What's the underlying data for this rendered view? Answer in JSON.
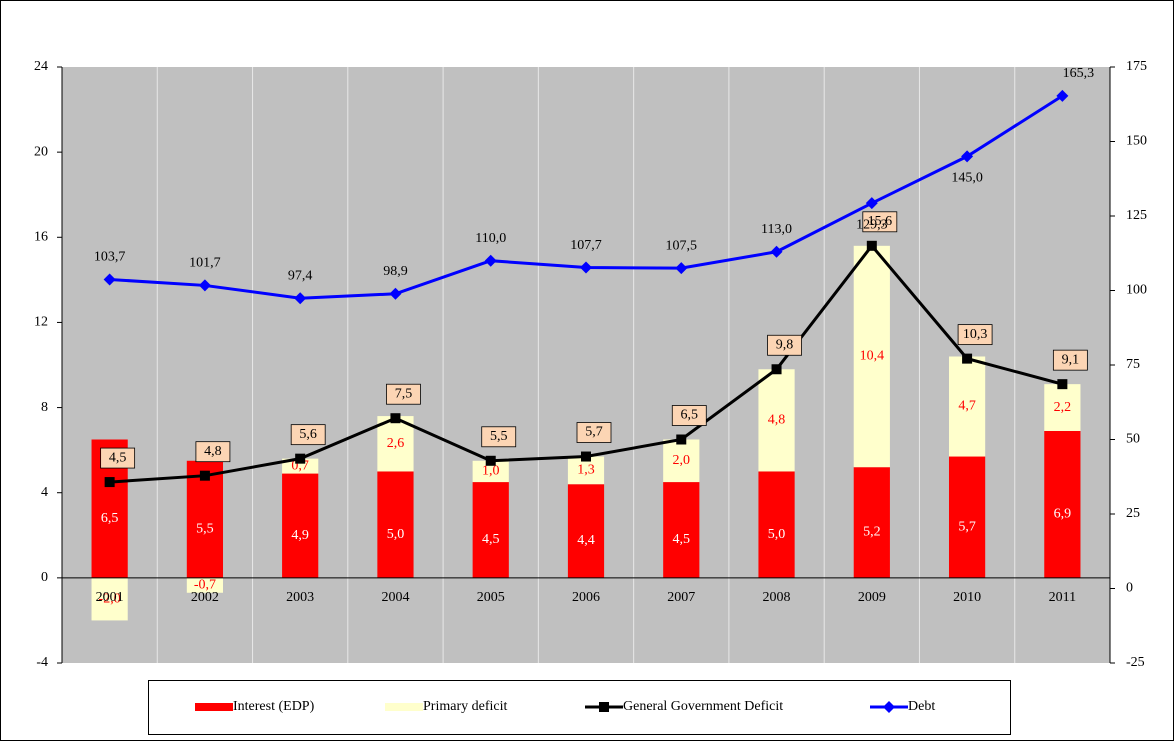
{
  "chart_data": {
    "type": "bar",
    "categories": [
      "2001",
      "2002",
      "2003",
      "2004",
      "2005",
      "2006",
      "2007",
      "2008",
      "2009",
      "2010",
      "2011"
    ],
    "ylim": [
      -4,
      24
    ],
    "yticks": [
      -4,
      0,
      4,
      8,
      12,
      16,
      20,
      24
    ],
    "y2lim": [
      -25,
      175
    ],
    "y2ticks": [
      -25,
      0,
      25,
      50,
      75,
      100,
      125,
      150,
      175
    ],
    "series": [
      {
        "name": "Interest (EDP)",
        "type": "bar",
        "color": "#ff0000",
        "values": [
          6.5,
          5.5,
          4.9,
          5.0,
          4.5,
          4.4,
          4.5,
          5.0,
          5.2,
          5.7,
          6.9
        ],
        "value_labels": [
          "6,5",
          "5,5",
          "4,9",
          "5,0",
          "4,5",
          "4,4",
          "4,5",
          "5,0",
          "5,2",
          "5,7",
          "6,9"
        ]
      },
      {
        "name": "Primary deficit",
        "type": "bar",
        "color": "#ffffcc",
        "values": [
          -2.0,
          -0.7,
          0.7,
          2.6,
          1.0,
          1.3,
          2.0,
          4.8,
          10.4,
          4.7,
          2.2
        ],
        "value_labels": [
          "-2,0",
          "-0,7",
          "0,7",
          "2,6",
          "1,0",
          "1,3",
          "2,0",
          "4,8",
          "10,4",
          "4,7",
          "2,2"
        ]
      },
      {
        "name": "General Government Deficit",
        "type": "line",
        "color": "#000000",
        "marker": "square",
        "values": [
          4.5,
          4.8,
          5.6,
          7.5,
          5.5,
          5.7,
          6.5,
          9.8,
          15.6,
          10.3,
          9.1
        ],
        "value_labels": [
          "4,5",
          "4,8",
          "5,6",
          "7,5",
          "5,5",
          "5,7",
          "6,5",
          "9,8",
          "15,6",
          "10,3",
          "9,1"
        ]
      },
      {
        "name": "Debt",
        "type": "line",
        "color": "#0000ff",
        "marker": "diamond",
        "axis": "y2",
        "values": [
          103.7,
          101.7,
          97.4,
          98.9,
          110.0,
          107.7,
          107.5,
          113.0,
          129.3,
          145.0,
          165.3
        ],
        "value_labels": [
          "103,7",
          "101,7",
          "97,4",
          "98,9",
          "110,0",
          "107,7",
          "107,5",
          "113,0",
          "129,3",
          "145,0",
          "165,3"
        ]
      }
    ]
  }
}
